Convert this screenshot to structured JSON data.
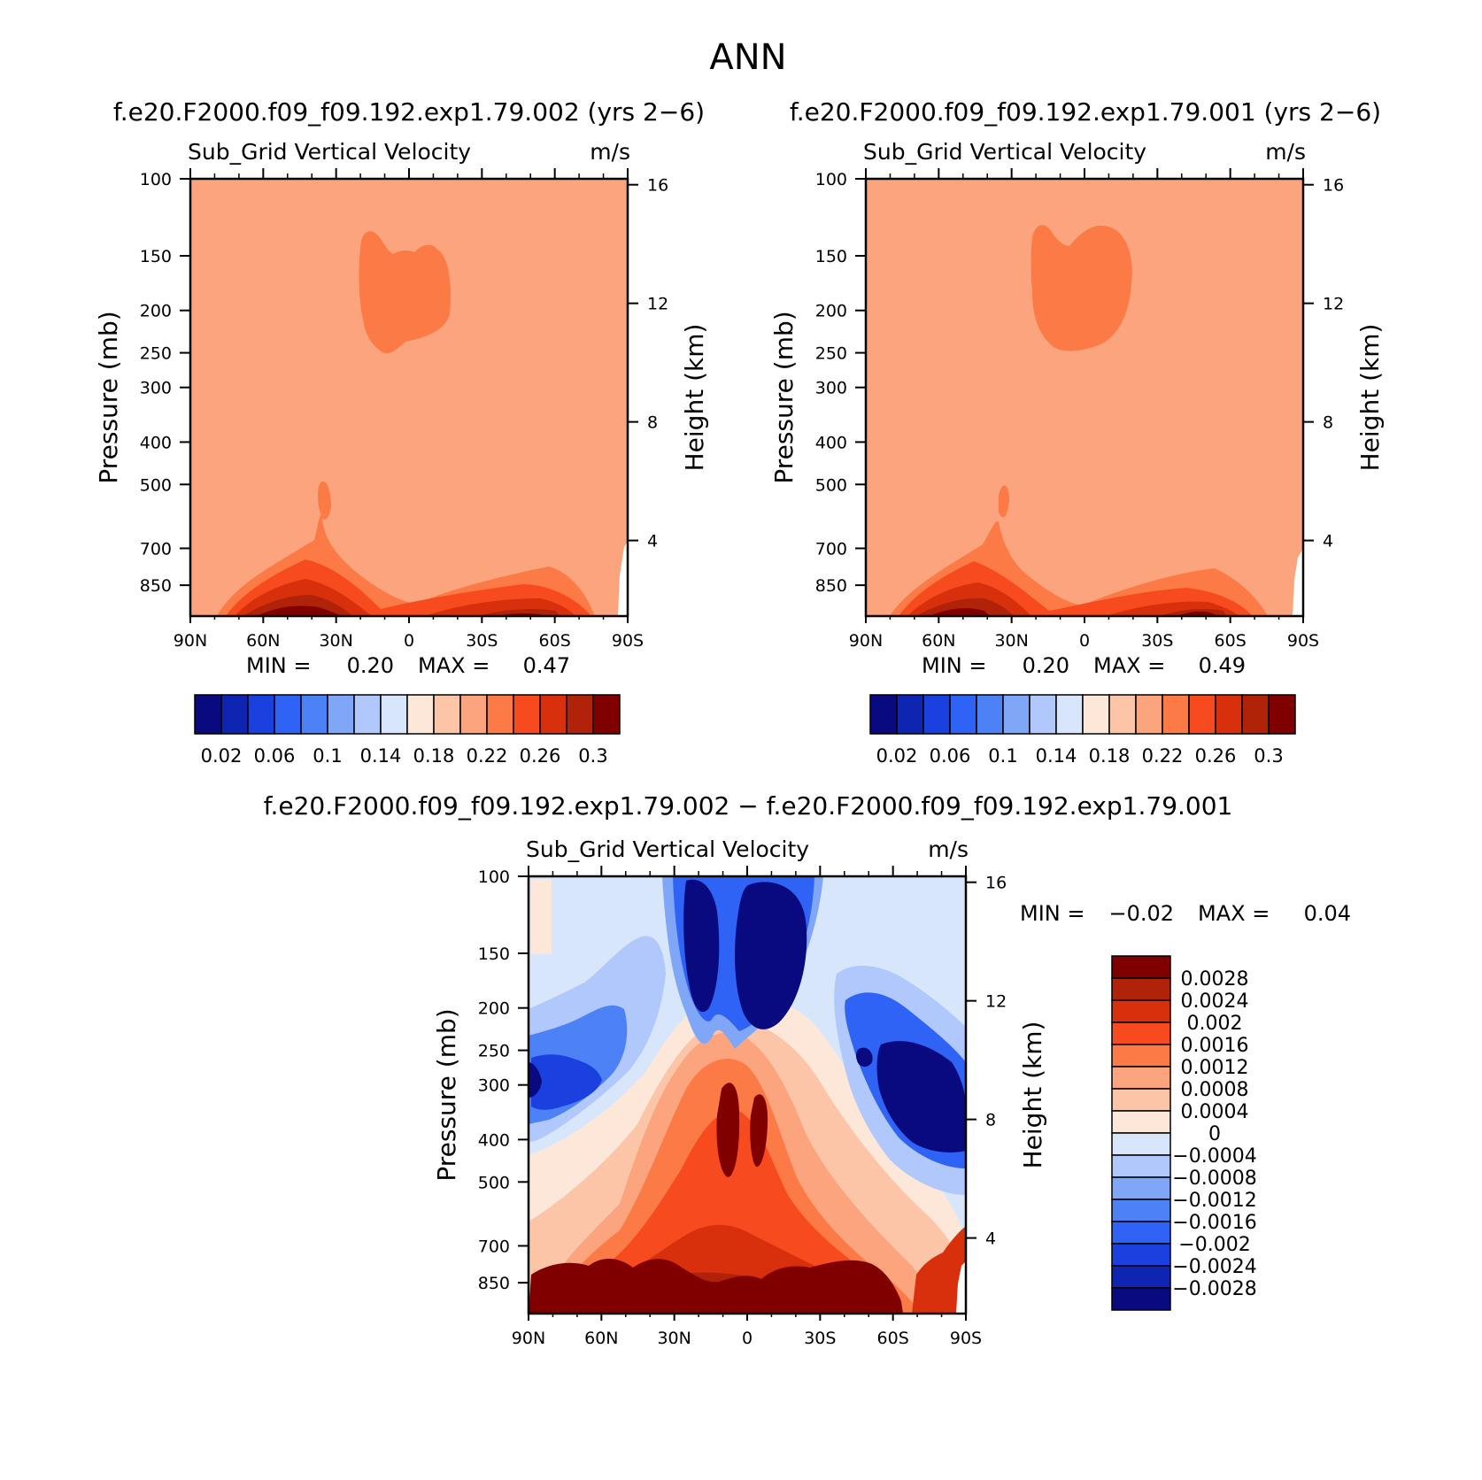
{
  "page_title": "ANN",
  "chart_data": [
    {
      "type": "contour",
      "title": "f.e20.F2000.f09_f09.192.exp1.79.002 (yrs 2−6)",
      "subtitle_left": "Sub_Grid Vertical Velocity",
      "subtitle_right": "m/s",
      "ylabel": "Pressure (mb)",
      "y2label": "Height (km)",
      "x_ticks": [
        "90N",
        "60N",
        "30N",
        "0",
        "30S",
        "60S",
        "90S"
      ],
      "y_ticks": [
        "100",
        "150",
        "200",
        "250",
        "300",
        "400",
        "500",
        "700",
        "850"
      ],
      "y2_ticks": [
        "16",
        "12",
        "8",
        "4"
      ],
      "ylim": [
        100,
        1000
      ],
      "stats": {
        "min_label": "MIN =",
        "min": "0.20",
        "max_label": "MAX =",
        "max": "0.47"
      },
      "colorbar_labels": [
        "0.02",
        "0.06",
        "0.1",
        "0.14",
        "0.18",
        "0.22",
        "0.26",
        "0.3"
      ],
      "colorbar_colors": [
        "#0a0a80",
        "#0d25b0",
        "#1a40e0",
        "#2e63f5",
        "#4d82f7",
        "#80a6f7",
        "#b0c8fb",
        "#d8e6fc",
        "#fde7d8",
        "#fcc5a8",
        "#fba47d",
        "#fb7a45",
        "#f74b1f",
        "#d8300d",
        "#b02308",
        "#800000"
      ]
    },
    {
      "type": "contour",
      "title": "f.e20.F2000.f09_f09.192.exp1.79.001 (yrs 2−6)",
      "subtitle_left": "Sub_Grid Vertical Velocity",
      "subtitle_right": "m/s",
      "ylabel": "Pressure (mb)",
      "y2label": "Height (km)",
      "x_ticks": [
        "90N",
        "60N",
        "30N",
        "0",
        "30S",
        "60S",
        "90S"
      ],
      "y_ticks": [
        "100",
        "150",
        "200",
        "250",
        "300",
        "400",
        "500",
        "700",
        "850"
      ],
      "y2_ticks": [
        "16",
        "12",
        "8",
        "4"
      ],
      "ylim": [
        100,
        1000
      ],
      "stats": {
        "min_label": "MIN =",
        "min": "0.20",
        "max_label": "MAX =",
        "max": "0.49"
      },
      "colorbar_labels": [
        "0.02",
        "0.06",
        "0.1",
        "0.14",
        "0.18",
        "0.22",
        "0.26",
        "0.3"
      ],
      "colorbar_colors": [
        "#0a0a80",
        "#0d25b0",
        "#1a40e0",
        "#2e63f5",
        "#4d82f7",
        "#80a6f7",
        "#b0c8fb",
        "#d8e6fc",
        "#fde7d8",
        "#fcc5a8",
        "#fba47d",
        "#fb7a45",
        "#f74b1f",
        "#d8300d",
        "#b02308",
        "#800000"
      ]
    },
    {
      "type": "contour",
      "title": "f.e20.F2000.f09_f09.192.exp1.79.002 − f.e20.F2000.f09_f09.192.exp1.79.001",
      "subtitle_left": "Sub_Grid Vertical Velocity",
      "subtitle_right": "m/s",
      "ylabel": "Pressure (mb)",
      "y2label": "Height (km)",
      "x_ticks": [
        "90N",
        "60N",
        "30N",
        "0",
        "30S",
        "60S",
        "90S"
      ],
      "y_ticks": [
        "100",
        "150",
        "200",
        "250",
        "300",
        "400",
        "500",
        "700",
        "850"
      ],
      "y2_ticks": [
        "16",
        "12",
        "8",
        "4"
      ],
      "ylim": [
        100,
        1000
      ],
      "stats": {
        "min_label": "MIN =",
        "min": "−0.02",
        "max_label": "MAX =",
        "max": "0.04"
      },
      "colorbar_labels": [
        "0.0028",
        "0.0024",
        "0.002",
        "0.0016",
        "0.0012",
        "0.0008",
        "0.0004",
        "0",
        "−0.0004",
        "−0.0008",
        "−0.0012",
        "−0.0016",
        "−0.002",
        "−0.0024",
        "−0.0028"
      ],
      "colorbar_colors": [
        "#800000",
        "#b02308",
        "#d8300d",
        "#f74b1f",
        "#fb7a45",
        "#fba47d",
        "#fcc5a8",
        "#fde7d8",
        "#d8e6fc",
        "#b0c8fb",
        "#80a6f7",
        "#4d82f7",
        "#2e63f5",
        "#1a40e0",
        "#0d25b0",
        "#0a0a80"
      ]
    }
  ]
}
